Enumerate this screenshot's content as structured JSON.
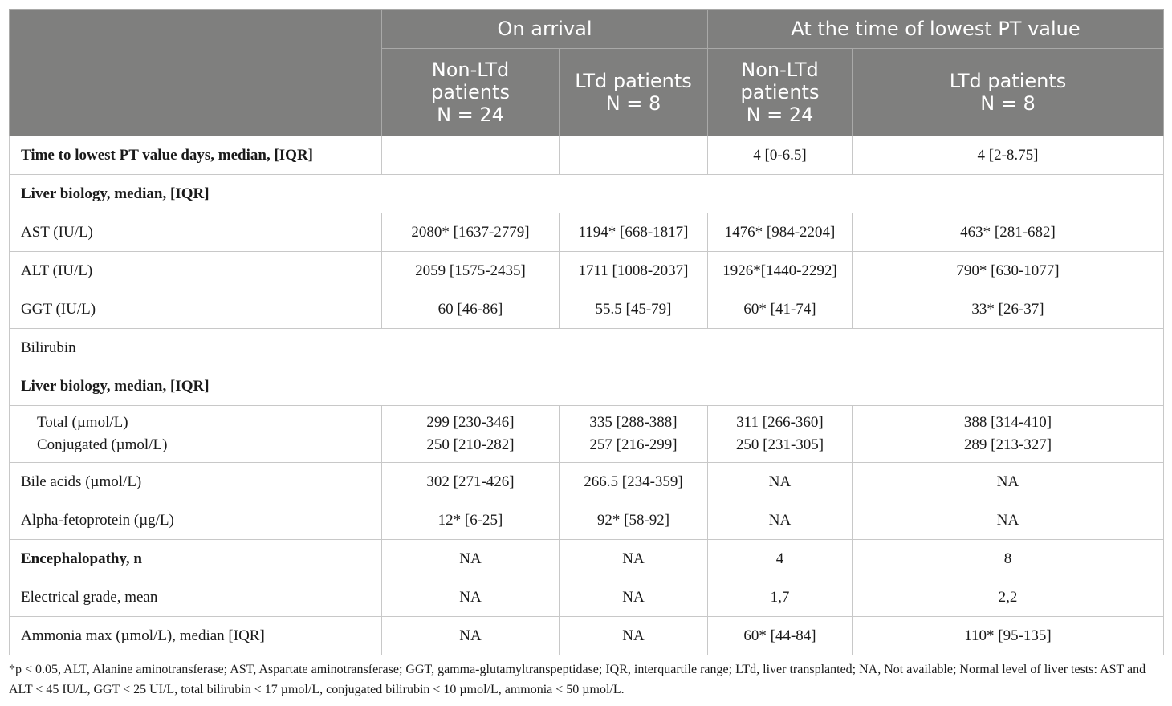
{
  "header": {
    "groups": [
      "On arrival",
      "At the time of lowest PT value"
    ],
    "columns": [
      [
        "Non-LTd",
        "patients",
        "N = 24"
      ],
      [
        "LTd patients",
        "N = 8"
      ],
      [
        "Non-LTd",
        "patients",
        "N = 24"
      ],
      [
        "LTd patients",
        "N = 8"
      ]
    ]
  },
  "rows": [
    {
      "label": "Time to lowest PT value days, median, [IQR]",
      "values": [
        "–",
        "–",
        "4 [0-6.5]",
        "4 [2-8.75]"
      ]
    },
    {
      "label": "Liver biology, median, [IQR]"
    },
    {
      "label": "AST (IU/L)",
      "values": [
        "2080* [1637-2779]",
        "1194* [668-1817]",
        "1476* [984-2204]",
        "463* [281-682]"
      ]
    },
    {
      "label": "ALT (IU/L)",
      "values": [
        "2059 [1575-2435]",
        "1711 [1008-2037]",
        "1926*[1440-2292]",
        "790* [630-1077]"
      ]
    },
    {
      "label": "GGT (IU/L)",
      "values": [
        "60 [46-86]",
        "55.5 [45-79]",
        "60* [41-74]",
        "33* [26-37]"
      ]
    },
    {
      "label": "Bilirubin"
    },
    {
      "label": "Liver biology, median, [IQR]"
    },
    {
      "label": [
        "Total (µmol/L)",
        "Conjugated (µmol/L)"
      ],
      "values": [
        [
          "299 [230-346]",
          "250 [210-282]"
        ],
        [
          "335 [288-388]",
          "257 [216-299]"
        ],
        [
          "311 [266-360]",
          "250 [231-305]"
        ],
        [
          "388 [314-410]",
          "289 [213-327]"
        ]
      ]
    },
    {
      "label": "Bile acids (µmol/L)",
      "values": [
        "302 [271-426]",
        "266.5 [234-359]",
        "NA",
        "NA"
      ]
    },
    {
      "label": "Alpha-fetoprotein (µg/L)",
      "values": [
        "12* [6-25]",
        "92* [58-92]",
        "NA",
        "NA"
      ]
    },
    {
      "label": "Encephalopathy, n",
      "values": [
        "NA",
        "NA",
        "4",
        "8"
      ]
    },
    {
      "label": "Electrical grade, mean",
      "values": [
        "NA",
        "NA",
        "1,7",
        "2,2"
      ]
    },
    {
      "label": "Ammonia max (µmol/L), median [IQR]",
      "values": [
        "NA",
        "NA",
        "60* [44-84]",
        "110* [95-135]"
      ]
    }
  ],
  "footnote": "*p < 0.05, ALT, Alanine aminotransferase; AST, Aspartate aminotransferase; GGT, gamma-glutamyltranspeptidase; IQR, interquartile range; LTd, liver transplanted; NA, Not available; Normal level of liver tests: AST and ALT < 45 IU/L, GGT < 25 UI/L, total bilirubin < 17 µmol/L, conjugated bilirubin < 10 µmol/L, ammonia < 50 µmol/L."
}
